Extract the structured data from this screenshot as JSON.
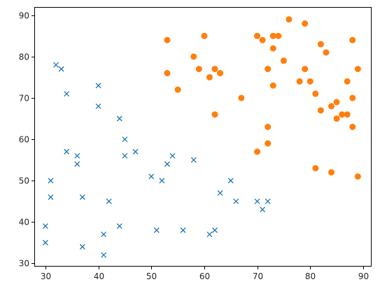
{
  "chart_data": {
    "type": "scatter",
    "title": "",
    "xlabel": "",
    "ylabel": "",
    "xlim": [
      27.9,
      91.6
    ],
    "ylim": [
      29.2,
      92.0
    ],
    "xticks": [
      30,
      40,
      50,
      60,
      70,
      80,
      90
    ],
    "yticks": [
      30,
      40,
      50,
      60,
      70,
      80,
      90
    ],
    "grid": false,
    "legend": "none",
    "series": [
      {
        "marker": "x",
        "color": "#1f77b4",
        "points": [
          [
            32,
            78
          ],
          [
            33,
            77
          ],
          [
            34,
            71
          ],
          [
            40,
            73
          ],
          [
            40,
            68
          ],
          [
            44,
            65
          ],
          [
            45,
            60
          ],
          [
            34,
            57
          ],
          [
            36,
            56
          ],
          [
            36,
            54
          ],
          [
            31,
            50
          ],
          [
            31,
            46
          ],
          [
            37,
            46
          ],
          [
            42,
            45
          ],
          [
            45,
            56
          ],
          [
            47,
            57
          ],
          [
            50,
            51
          ],
          [
            52,
            50
          ],
          [
            53,
            54
          ],
          [
            54,
            56
          ],
          [
            58,
            55
          ],
          [
            63,
            47
          ],
          [
            65,
            50
          ],
          [
            66,
            45
          ],
          [
            70,
            45
          ],
          [
            71,
            43
          ],
          [
            72,
            45
          ],
          [
            30,
            39
          ],
          [
            30,
            35
          ],
          [
            37,
            34
          ],
          [
            41,
            37
          ],
          [
            41,
            32
          ],
          [
            44,
            39
          ],
          [
            51,
            38
          ],
          [
            56,
            38
          ],
          [
            61,
            37
          ],
          [
            62,
            38
          ]
        ]
      },
      {
        "marker": "o",
        "color": "#ff7f0e",
        "points": [
          [
            53,
            84
          ],
          [
            53,
            76
          ],
          [
            55,
            72
          ],
          [
            58,
            80
          ],
          [
            59,
            77
          ],
          [
            60,
            85
          ],
          [
            61,
            75
          ],
          [
            62,
            77
          ],
          [
            62,
            66
          ],
          [
            63,
            76
          ],
          [
            67,
            70
          ],
          [
            70,
            85
          ],
          [
            71,
            84
          ],
          [
            72,
            77
          ],
          [
            73,
            85
          ],
          [
            73,
            82
          ],
          [
            73,
            73
          ],
          [
            74,
            85
          ],
          [
            75,
            79
          ],
          [
            76,
            89
          ],
          [
            78,
            74
          ],
          [
            79,
            88
          ],
          [
            79,
            77
          ],
          [
            80,
            74
          ],
          [
            81,
            71
          ],
          [
            82,
            83
          ],
          [
            82,
            67
          ],
          [
            83,
            81
          ],
          [
            84,
            68
          ],
          [
            85,
            69
          ],
          [
            85,
            65
          ],
          [
            86,
            66
          ],
          [
            87,
            74
          ],
          [
            87,
            66
          ],
          [
            88,
            84
          ],
          [
            88,
            70
          ],
          [
            88,
            63
          ],
          [
            89,
            77
          ],
          [
            89,
            51
          ],
          [
            84,
            52
          ],
          [
            81,
            53
          ],
          [
            72,
            63
          ],
          [
            72,
            59
          ],
          [
            70,
            57
          ]
        ]
      }
    ]
  },
  "colors": {
    "axis": "#000000",
    "series_x": "#1f77b4",
    "series_o": "#ff7f0e"
  }
}
